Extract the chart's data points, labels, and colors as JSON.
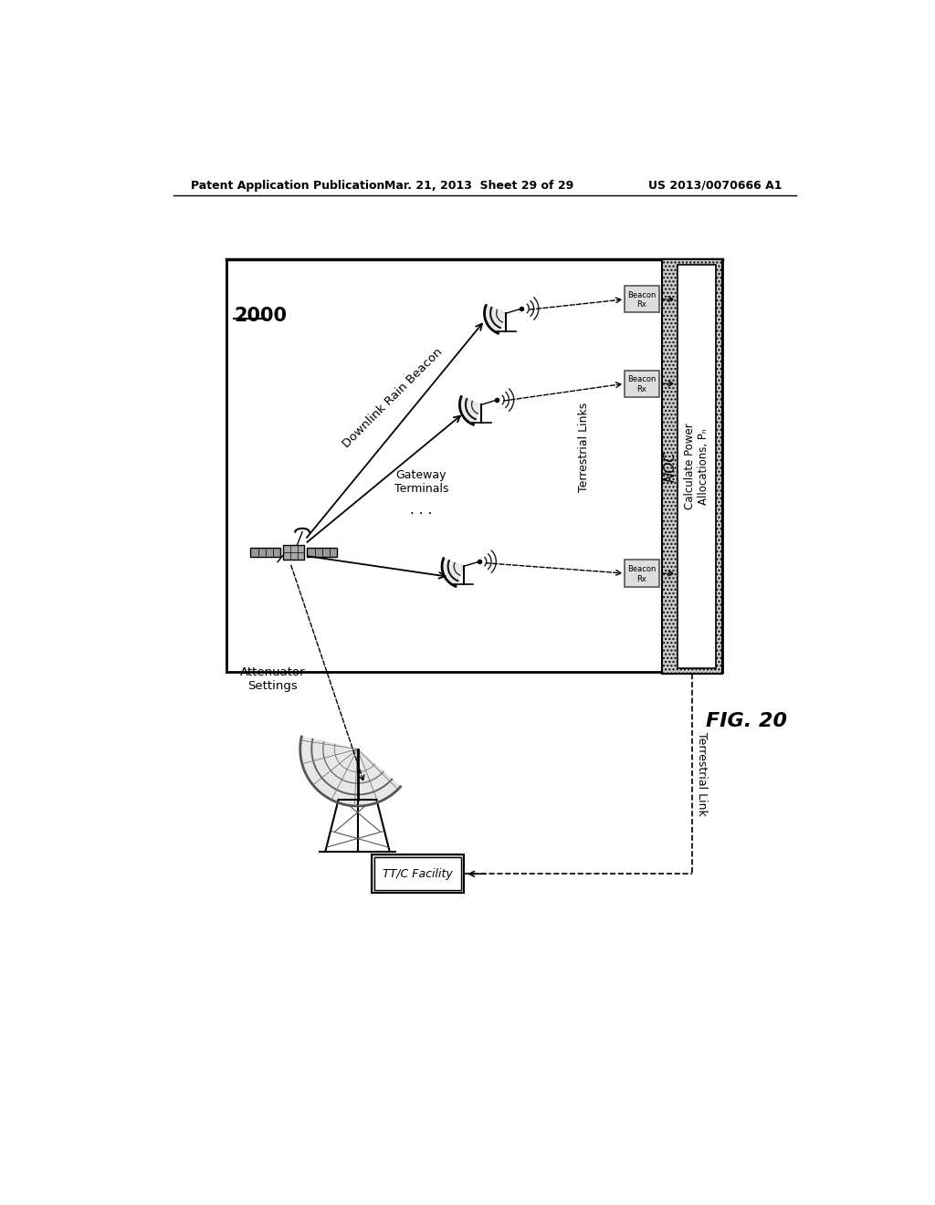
{
  "title_left": "Patent Application Publication",
  "title_center": "Mar. 21, 2013  Sheet 29 of 29",
  "title_right": "US 2013/0070666 A1",
  "fig_label": "FIG. 20",
  "diagram_number": "2000",
  "background_color": "#ffffff",
  "text_color": "#000000",
  "noc_label": "NOC",
  "noc_inner_label": "Calculate Power\nAllocations, Pₙ",
  "ttc_label": "TT/C Facility",
  "label_downlink": "Downlink Rain Beacon",
  "label_attenuator": "Attenuator\nSettings",
  "label_gateway": "Gateway\nTerminals",
  "label_terrestrial_links": "Terrestrial Links",
  "label_terrestrial_link": "Terrestrial Link"
}
